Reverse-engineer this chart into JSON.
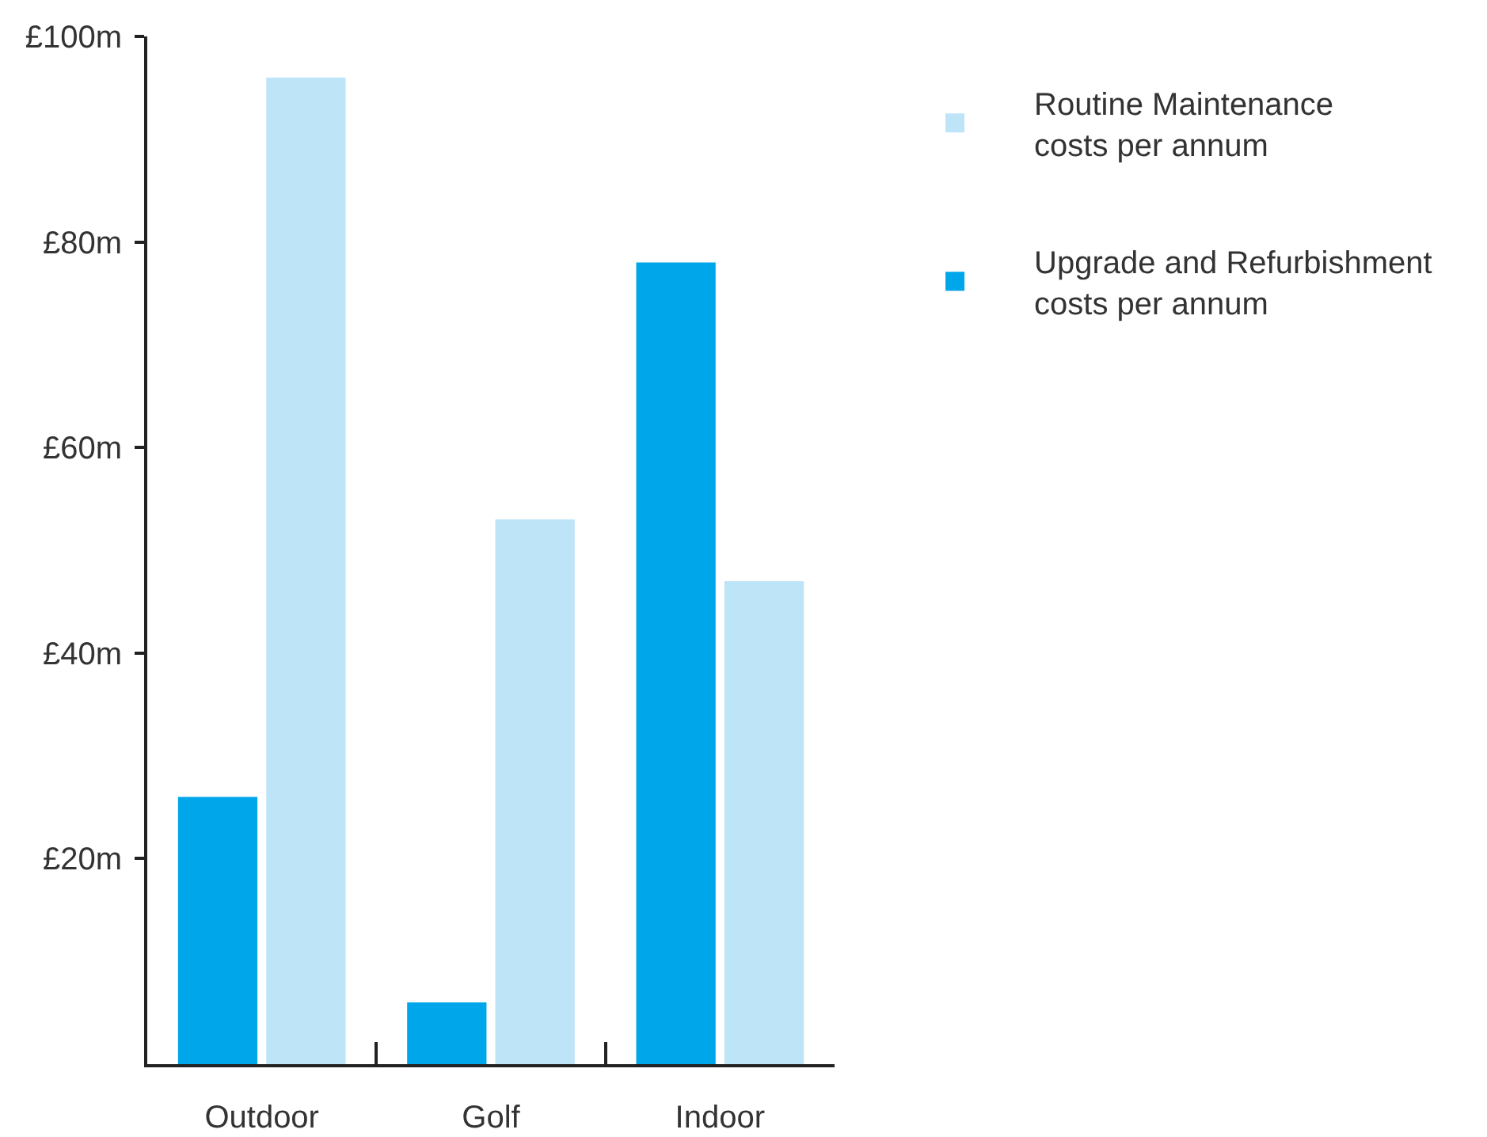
{
  "chart_data": {
    "type": "bar",
    "categories": [
      "Outdoor",
      "Golf",
      "Indoor"
    ],
    "series": [
      {
        "name": "Upgrade and Refurbishment costs per annum",
        "color": "#00a6ea",
        "values": [
          26,
          6,
          78
        ]
      },
      {
        "name": "Routine Maintenance costs per annum",
        "color": "#bee4f8",
        "values": [
          96,
          53,
          47
        ]
      }
    ],
    "ylim": [
      0,
      100
    ],
    "yticks": [
      {
        "value": 20,
        "label": "£20m"
      },
      {
        "value": 40,
        "label": "£40m"
      },
      {
        "value": 60,
        "label": "£60m"
      },
      {
        "value": 80,
        "label": "£80m"
      },
      {
        "value": 100,
        "label": "£100m"
      }
    ],
    "legend": "top right"
  }
}
